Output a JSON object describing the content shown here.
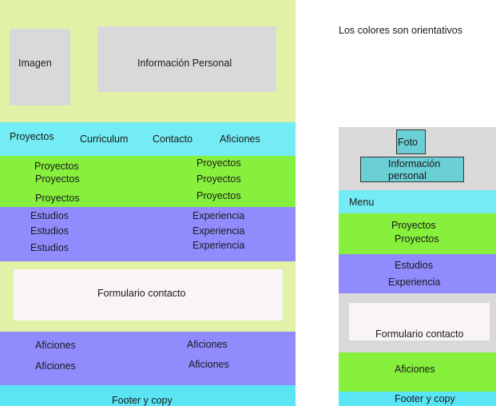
{
  "colors": {
    "lime_light": "#E1F2A6",
    "cyan": "#74ECF5",
    "green": "#86F03D",
    "purple": "#908CFD",
    "gray": "#D9D9D9",
    "teal": "#6BCFD6",
    "offwhite": "#FAF5F5"
  },
  "note": "Los colores son orientativos",
  "desktop": {
    "header": {
      "image_label": "Imagen",
      "info_label": "Información Personal"
    },
    "nav": [
      "Proyectos",
      "Curriculum",
      "Contacto",
      "Aficiones"
    ],
    "projects": {
      "left": [
        "Proyectos",
        "Proyectos",
        "Proyectos"
      ],
      "right": [
        "Proyectos",
        "Proyectos",
        "Proyectos"
      ]
    },
    "cv": {
      "left": [
        "Estudios",
        "Estudios",
        "Estudios"
      ],
      "right": [
        "Experiencia",
        "Experiencia",
        "Experiencia"
      ]
    },
    "form_label": "Formulario contacto",
    "hobbies": {
      "left": [
        "Aficiones",
        "Aficiones"
      ],
      "right": [
        "Aficiones",
        "Aficiones"
      ]
    },
    "footer": "Footer y copy"
  },
  "mobile": {
    "photo_label": "Foto",
    "info_label_line1": "Información",
    "info_label_line2": "personal",
    "menu_label": "Menu",
    "projects": [
      "Proyectos",
      "Proyectos"
    ],
    "studies": "Estudios",
    "experience": "Experiencia",
    "form_label": "Formulario contacto",
    "hobbies": "Aficiones",
    "footer": "Footer y copy"
  }
}
